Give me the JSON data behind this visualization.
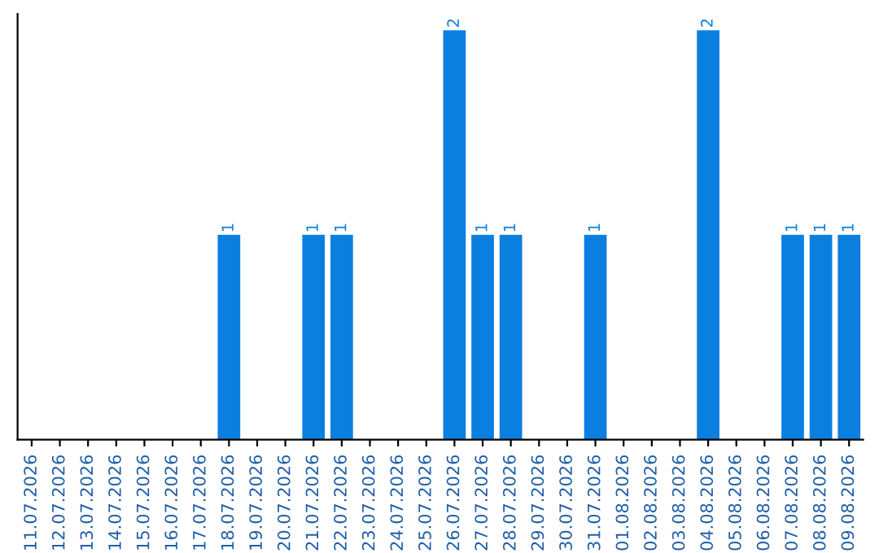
{
  "chart_data": {
    "type": "bar",
    "categories": [
      "11.07.2026",
      "12.07.2026",
      "13.07.2026",
      "14.07.2026",
      "15.07.2026",
      "16.07.2026",
      "17.07.2026",
      "18.07.2026",
      "19.07.2026",
      "20.07.2026",
      "21.07.2026",
      "22.07.2026",
      "23.07.2026",
      "24.07.2026",
      "25.07.2026",
      "26.07.2026",
      "27.07.2026",
      "28.07.2026",
      "29.07.2026",
      "30.07.2026",
      "31.07.2026",
      "01.08.2026",
      "02.08.2026",
      "03.08.2026",
      "04.08.2026",
      "05.08.2026",
      "06.08.2026",
      "07.08.2026",
      "08.08.2026",
      "09.08.2026"
    ],
    "values": [
      0,
      0,
      0,
      0,
      0,
      0,
      0,
      1,
      0,
      0,
      1,
      1,
      0,
      0,
      0,
      2,
      1,
      1,
      0,
      0,
      1,
      0,
      0,
      0,
      2,
      0,
      0,
      1,
      1,
      1
    ],
    "value_labels": [
      null,
      null,
      null,
      null,
      null,
      null,
      null,
      "1",
      null,
      null,
      "1",
      "1",
      null,
      null,
      null,
      "2",
      "1",
      "1",
      null,
      null,
      "1",
      null,
      null,
      null,
      "2",
      null,
      null,
      "1",
      "1",
      "1"
    ],
    "color": "#0a7fe0",
    "grid": false,
    "legend": false
  }
}
